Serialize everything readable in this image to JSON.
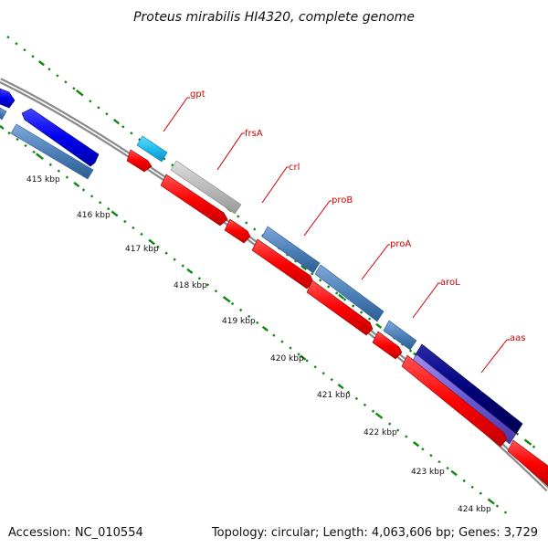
{
  "title": "Proteus mirabilis HI4320, complete genome",
  "footer": {
    "accession": "Accession: NC_010554",
    "topology": "Topology: circular; Length: 4,063,606 bp; Genes: 3,729"
  },
  "genome": {
    "length_bp": 4063606,
    "genes": 3729,
    "accession": "NC_010554",
    "topology": "circular"
  },
  "ticks": [
    {
      "label": "415 kbp"
    },
    {
      "label": "416 kbp"
    },
    {
      "label": "417 kbp"
    },
    {
      "label": "418 kbp"
    },
    {
      "label": "419 kbp"
    },
    {
      "label": "420 kbp"
    },
    {
      "label": "421 kbp"
    },
    {
      "label": "422 kbp"
    },
    {
      "label": "423 kbp"
    },
    {
      "label": "424 kbp"
    }
  ],
  "gene_labels": [
    "gpt",
    "frsA",
    "crl",
    "proB",
    "proA",
    "aroL",
    "aas"
  ],
  "colors": {
    "backbone": "#8a8a8a",
    "cds": "#ff0000",
    "blue": "#0000ee",
    "steelblue": "#4f81b9",
    "cyan": "#22bbee",
    "gray": "#bbbbbb",
    "navy": "#00007a",
    "purple": "#6a5acd",
    "label": "#d10000",
    "tick": "#118811"
  }
}
